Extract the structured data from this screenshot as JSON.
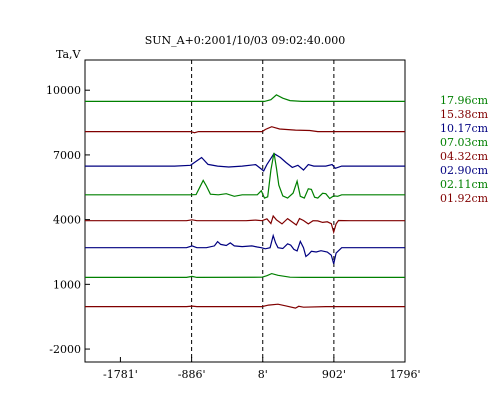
{
  "chart_data": {
    "type": "line",
    "title": "SUN_A+0:2001/10/03 09:02:40.000",
    "ylabel": "Ta,V",
    "xlim": [
      -2226,
      1796
    ],
    "ylim": [
      -2600,
      11400
    ],
    "x_ticks": [
      -1781,
      -886,
      8,
      902,
      1796
    ],
    "x_tick_labels": [
      "-1781'",
      "-886'",
      "8'",
      "902'",
      "1796'"
    ],
    "y_ticks": [
      -2000,
      1000,
      4000,
      7000,
      10000
    ],
    "y_tick_labels": [
      "-2000",
      "1000",
      "4000",
      "7000",
      "10000"
    ],
    "vlines": [
      -886,
      8,
      902
    ],
    "grid": false,
    "legend_position": "right",
    "series": [
      {
        "name": "17.96cm",
        "color": "#008000",
        "points": [
          [
            -2226,
            9480
          ],
          [
            -250,
            9480
          ],
          [
            30,
            9480
          ],
          [
            110,
            9560
          ],
          [
            180,
            9780
          ],
          [
            260,
            9630
          ],
          [
            350,
            9520
          ],
          [
            500,
            9480
          ],
          [
            1796,
            9480
          ]
        ]
      },
      {
        "name": "15.38cm",
        "color": "#800000",
        "points": [
          [
            -2226,
            8080
          ],
          [
            -900,
            8080
          ],
          [
            -850,
            8030
          ],
          [
            -800,
            8080
          ],
          [
            0,
            8080
          ],
          [
            40,
            8180
          ],
          [
            120,
            8310
          ],
          [
            220,
            8200
          ],
          [
            420,
            8150
          ],
          [
            600,
            8130
          ],
          [
            700,
            8080
          ],
          [
            1796,
            8080
          ]
        ]
      },
      {
        "name": "10.17cm",
        "color": "#000080",
        "points": [
          [
            -2226,
            6480
          ],
          [
            -1100,
            6480
          ],
          [
            -900,
            6520
          ],
          [
            -760,
            6880
          ],
          [
            -680,
            6560
          ],
          [
            -560,
            6480
          ],
          [
            -420,
            6440
          ],
          [
            -250,
            6480
          ],
          [
            -80,
            6550
          ],
          [
            20,
            6260
          ],
          [
            60,
            6550
          ],
          [
            150,
            7060
          ],
          [
            230,
            6880
          ],
          [
            300,
            6650
          ],
          [
            380,
            6420
          ],
          [
            450,
            6520
          ],
          [
            520,
            6300
          ],
          [
            580,
            6550
          ],
          [
            650,
            6480
          ],
          [
            800,
            6480
          ],
          [
            880,
            6550
          ],
          [
            920,
            6380
          ],
          [
            1000,
            6480
          ],
          [
            1796,
            6480
          ]
        ]
      },
      {
        "name": "07.03cm",
        "color": "#008000",
        "points": [
          [
            -2226,
            5150
          ],
          [
            -900,
            5150
          ],
          [
            -830,
            5160
          ],
          [
            -780,
            5520
          ],
          [
            -740,
            5820
          ],
          [
            -700,
            5560
          ],
          [
            -650,
            5180
          ],
          [
            -550,
            5150
          ],
          [
            -450,
            5200
          ],
          [
            -350,
            5080
          ],
          [
            -250,
            5150
          ],
          [
            -60,
            5150
          ],
          [
            -10,
            5340
          ],
          [
            30,
            5000
          ],
          [
            70,
            5060
          ],
          [
            110,
            6300
          ],
          [
            150,
            7100
          ],
          [
            180,
            6400
          ],
          [
            210,
            5600
          ],
          [
            260,
            5100
          ],
          [
            320,
            5000
          ],
          [
            390,
            5230
          ],
          [
            440,
            5780
          ],
          [
            480,
            5080
          ],
          [
            530,
            5000
          ],
          [
            580,
            5430
          ],
          [
            620,
            5400
          ],
          [
            660,
            5040
          ],
          [
            700,
            5000
          ],
          [
            760,
            5220
          ],
          [
            800,
            5200
          ],
          [
            850,
            4980
          ],
          [
            900,
            5100
          ],
          [
            950,
            5080
          ],
          [
            1000,
            5150
          ],
          [
            1796,
            5150
          ]
        ]
      },
      {
        "name": "04.32cm",
        "color": "#800000",
        "points": [
          [
            -2226,
            3950
          ],
          [
            -950,
            3950
          ],
          [
            -880,
            3990
          ],
          [
            -820,
            3950
          ],
          [
            -200,
            3950
          ],
          [
            -80,
            3980
          ],
          [
            0,
            3950
          ],
          [
            60,
            4040
          ],
          [
            110,
            3820
          ],
          [
            140,
            4170
          ],
          [
            180,
            3990
          ],
          [
            250,
            3800
          ],
          [
            320,
            4050
          ],
          [
            360,
            3940
          ],
          [
            430,
            3750
          ],
          [
            470,
            4050
          ],
          [
            520,
            3960
          ],
          [
            580,
            3800
          ],
          [
            640,
            3950
          ],
          [
            700,
            3940
          ],
          [
            760,
            3870
          ],
          [
            820,
            3900
          ],
          [
            870,
            3810
          ],
          [
            900,
            3420
          ],
          [
            930,
            3800
          ],
          [
            960,
            3960
          ],
          [
            1100,
            3950
          ],
          [
            1796,
            3950
          ]
        ]
      },
      {
        "name": "02.90cm",
        "color": "#000080",
        "points": [
          [
            -2226,
            2700
          ],
          [
            -950,
            2700
          ],
          [
            -880,
            2780
          ],
          [
            -820,
            2700
          ],
          [
            -700,
            2700
          ],
          [
            -600,
            2780
          ],
          [
            -560,
            2980
          ],
          [
            -520,
            2850
          ],
          [
            -450,
            2800
          ],
          [
            -400,
            2920
          ],
          [
            -350,
            2780
          ],
          [
            -250,
            2750
          ],
          [
            -130,
            2780
          ],
          [
            -60,
            2730
          ],
          [
            -10,
            2700
          ],
          [
            40,
            2650
          ],
          [
            100,
            2700
          ],
          [
            140,
            3260
          ],
          [
            170,
            2920
          ],
          [
            200,
            2700
          ],
          [
            260,
            2660
          ],
          [
            320,
            2880
          ],
          [
            360,
            2820
          ],
          [
            400,
            2620
          ],
          [
            440,
            2550
          ],
          [
            480,
            2990
          ],
          [
            520,
            2700
          ],
          [
            550,
            2290
          ],
          [
            580,
            2380
          ],
          [
            620,
            2530
          ],
          [
            680,
            2500
          ],
          [
            740,
            2560
          ],
          [
            820,
            2500
          ],
          [
            870,
            2350
          ],
          [
            900,
            1950
          ],
          [
            930,
            2450
          ],
          [
            1000,
            2700
          ],
          [
            1796,
            2700
          ]
        ]
      },
      {
        "name": "02.11cm",
        "color": "#008000",
        "points": [
          [
            -2226,
            1320
          ],
          [
            -950,
            1320
          ],
          [
            -880,
            1370
          ],
          [
            -820,
            1320
          ],
          [
            0,
            1330
          ],
          [
            60,
            1400
          ],
          [
            120,
            1500
          ],
          [
            200,
            1420
          ],
          [
            350,
            1330
          ],
          [
            500,
            1320
          ],
          [
            1796,
            1320
          ]
        ]
      },
      {
        "name": "01.92cm",
        "color": "#800000",
        "points": [
          [
            -2226,
            -30
          ],
          [
            -950,
            -30
          ],
          [
            -880,
            -10
          ],
          [
            -820,
            -30
          ],
          [
            0,
            -30
          ],
          [
            80,
            40
          ],
          [
            200,
            80
          ],
          [
            300,
            0
          ],
          [
            420,
            -100
          ],
          [
            460,
            -20
          ],
          [
            520,
            -60
          ],
          [
            800,
            -30
          ],
          [
            1796,
            -30
          ]
        ]
      }
    ]
  }
}
